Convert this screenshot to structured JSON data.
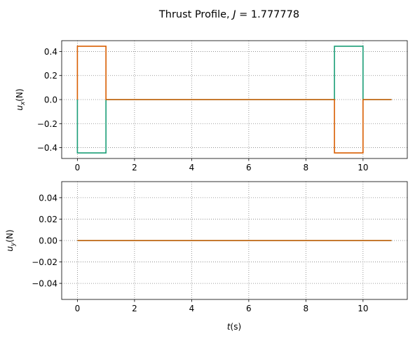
{
  "figure": {
    "title_prefix": "Thrust Profile, ",
    "title_var": "J",
    "title_value": " = 1.777778"
  },
  "colors": {
    "series_a": "#1b9e77",
    "series_b": "#d95f02",
    "grid": "#808080"
  },
  "chart_data": [
    {
      "type": "line",
      "step": true,
      "ylabel_main": "u",
      "ylabel_sub": "x",
      "ylabel_suffix": "(N)",
      "xlabel": "",
      "xlim": [
        -0.55,
        11.55
      ],
      "ylim": [
        -0.49,
        0.49
      ],
      "xticks": [
        0,
        2,
        4,
        6,
        8,
        10
      ],
      "yticks": [
        0.4,
        0.2,
        0.0,
        -0.2,
        -0.4
      ],
      "ytick_labels": [
        "0.4",
        "0.2",
        "0.0",
        "−0.2",
        "−0.4"
      ],
      "grid": true,
      "series": [
        {
          "color_key": "series_a",
          "x": [
            0,
            0,
            1,
            1,
            9,
            9,
            10,
            10,
            11
          ],
          "y": [
            0,
            -0.444,
            -0.444,
            0,
            0,
            0.444,
            0.444,
            0,
            0
          ]
        },
        {
          "color_key": "series_b",
          "x": [
            0,
            0,
            1,
            1,
            9,
            9,
            10,
            10,
            11
          ],
          "y": [
            0,
            0.444,
            0.444,
            0,
            0,
            -0.444,
            -0.444,
            0,
            0
          ]
        }
      ]
    },
    {
      "type": "line",
      "step": true,
      "ylabel_main": "u",
      "ylabel_sub": "y",
      "ylabel_suffix": "(N)",
      "xlabel_main": "t",
      "xlabel_suffix": "(s)",
      "xlim": [
        -0.55,
        11.55
      ],
      "ylim": [
        -0.055,
        0.055
      ],
      "xticks": [
        0,
        2,
        4,
        6,
        8,
        10
      ],
      "yticks": [
        0.04,
        0.02,
        0.0,
        -0.02,
        -0.04
      ],
      "ytick_labels": [
        "0.04",
        "0.02",
        "0.00",
        "−0.02",
        "−0.04"
      ],
      "grid": true,
      "series": [
        {
          "color_key": "series_a",
          "x": [
            0,
            11
          ],
          "y": [
            0,
            0
          ]
        },
        {
          "color_key": "series_b",
          "x": [
            0,
            11
          ],
          "y": [
            0,
            0
          ]
        }
      ]
    }
  ]
}
